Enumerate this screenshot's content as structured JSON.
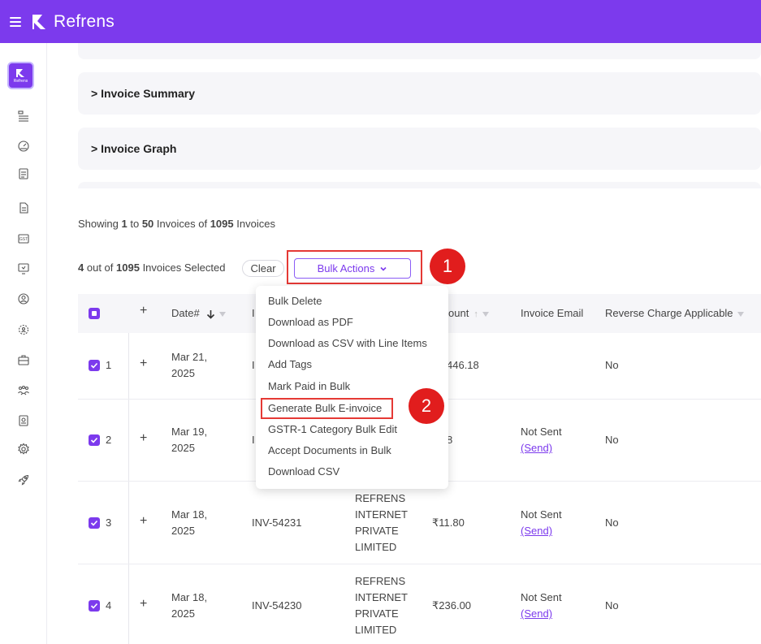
{
  "app": {
    "name": "Refrens",
    "mini_logo": "Refrens"
  },
  "sidebar": {
    "icons": [
      "list-icon",
      "speedometer-icon",
      "document-icon",
      "invoice-icon",
      "gst-icon",
      "monitor-icon",
      "user-circle-icon",
      "gear-users-icon",
      "briefcase-icon",
      "team-icon",
      "certificate-icon",
      "settings-icon",
      "rocket-icon"
    ],
    "gst_label": "GST"
  },
  "panels": {
    "invoice_summary": "> Invoice Summary",
    "invoice_graph": "> Invoice Graph"
  },
  "showing": {
    "prefix": "Showing",
    "from": "1",
    "to_word": "to",
    "to": "50",
    "mid": "Invoices of",
    "total": "1095",
    "suffix": "Invoices"
  },
  "selection": {
    "count": "4",
    "mid": "out of",
    "total": "1095",
    "suffix": "Invoices",
    "tail": "Selected"
  },
  "toolbar": {
    "clear": "Clear",
    "bulk_actions": "Bulk Actions"
  },
  "annotations": {
    "one": "1",
    "two": "2"
  },
  "bulk_menu": [
    "Bulk Delete",
    "Download as PDF",
    "Download as CSV with Line Items",
    "Add Tags",
    "Mark Paid in Bulk",
    "Generate Bulk E-invoice",
    "GSTR-1 Category Bulk Edit",
    "Accept Documents in Bulk",
    "Download CSV"
  ],
  "table": {
    "headers": {
      "date": "Date#",
      "invoice_partial": "I",
      "amount_partial": "ount",
      "email": "Invoice Email",
      "reverse": "Reverse Charge Applicable"
    },
    "rows": [
      {
        "n": "1",
        "date1": "Mar 21,",
        "date2": "2025",
        "inv": "I",
        "client": [],
        "amount": "446.18",
        "email": "",
        "send": "",
        "reverse": "No"
      },
      {
        "n": "2",
        "date1": "Mar 19,",
        "date2": "2025",
        "inv": "I",
        "client": [],
        "amount": "8",
        "email": "Not Sent",
        "send": "(Send)",
        "reverse": "No"
      },
      {
        "n": "3",
        "date1": "Mar 18,",
        "date2": "2025",
        "inv": "INV-54231",
        "client": [
          "REFRENS",
          "INTERNET",
          "PRIVATE",
          "LIMITED"
        ],
        "amount": "₹11.80",
        "email": "Not Sent",
        "send": "(Send)",
        "reverse": "No"
      },
      {
        "n": "4",
        "date1": "Mar 18,",
        "date2": "2025",
        "inv": "INV-54230",
        "client": [
          "REFRENS",
          "INTERNET",
          "PRIVATE",
          "LIMITED"
        ],
        "amount": "₹236.00",
        "email": "Not Sent",
        "send": "(Send)",
        "reverse": "No"
      }
    ]
  },
  "colors": {
    "brand": "#7c3aed",
    "annotation_red": "#e11d1d"
  }
}
